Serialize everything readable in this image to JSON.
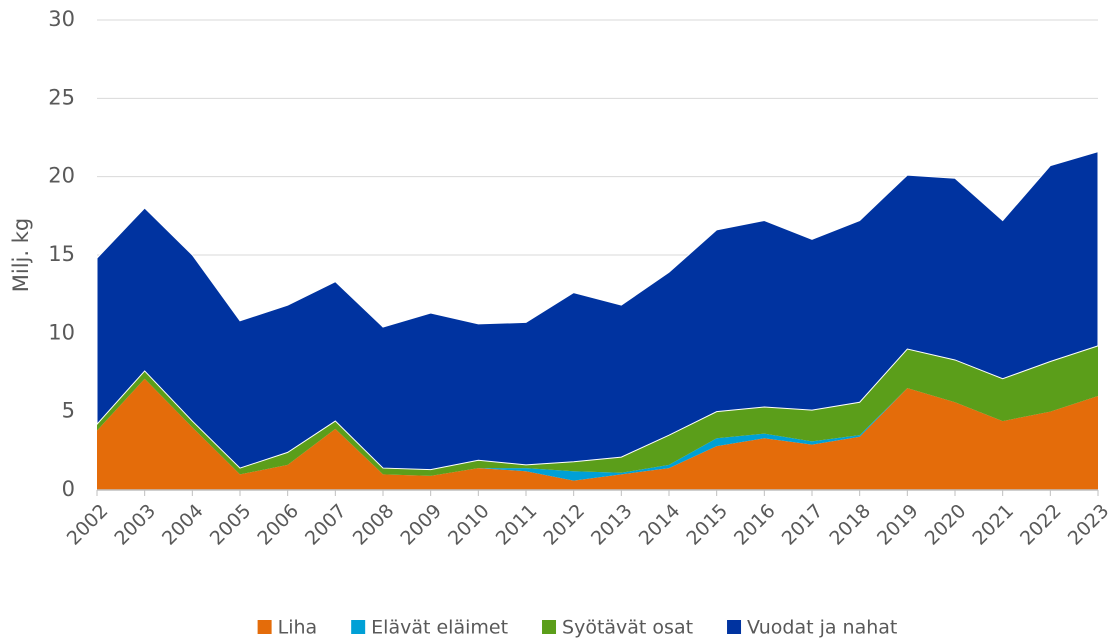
{
  "chart_data": {
    "type": "stacked_area",
    "y_label": "Milj. kg",
    "categories": [
      "2002",
      "2003",
      "2004",
      "2005",
      "2006",
      "2007",
      "2008",
      "2009",
      "2010",
      "2011",
      "2012",
      "2013",
      "2014",
      "2015",
      "2016",
      "2017",
      "2018",
      "2019",
      "2020",
      "2021",
      "2022",
      "2023"
    ],
    "series": [
      {
        "name": "Liha",
        "color": "#e46c0a",
        "values": [
          3.8,
          7.1,
          4.0,
          1.0,
          1.6,
          3.9,
          1.0,
          0.9,
          1.4,
          1.2,
          0.6,
          1.0,
          1.4,
          2.8,
          3.3,
          2.9,
          3.4,
          6.5,
          5.6,
          4.4,
          5.0,
          6.0
        ]
      },
      {
        "name": "Elävät eläimet",
        "color": "#00a0d6",
        "values": [
          0,
          0,
          0,
          0,
          0,
          0,
          0,
          0,
          0,
          0.2,
          0.6,
          0.1,
          0.2,
          0.5,
          0.3,
          0.2,
          0.1,
          0,
          0,
          0,
          0,
          0
        ]
      },
      {
        "name": "Syötävät osat",
        "color": "#5b9e1a",
        "values": [
          0.4,
          0.5,
          0.4,
          0.4,
          0.8,
          0.5,
          0.4,
          0.4,
          0.5,
          0.2,
          0.6,
          1.0,
          1.9,
          1.7,
          1.7,
          2.0,
          2.1,
          2.5,
          2.7,
          2.7,
          3.2,
          3.2
        ]
      },
      {
        "name": "Vuodat ja nahat",
        "color": "#0033a0",
        "values": [
          10.6,
          10.4,
          10.6,
          9.4,
          9.4,
          8.9,
          9.0,
          10.0,
          8.7,
          9.1,
          10.8,
          9.7,
          10.4,
          11.6,
          11.9,
          10.9,
          11.6,
          11.1,
          11.6,
          10.1,
          12.5,
          12.4
        ]
      }
    ],
    "ylim": [
      0,
      30
    ],
    "yticks": [
      0,
      5,
      10,
      15,
      20,
      25,
      30
    ],
    "grid": true,
    "legend": "bottom"
  }
}
